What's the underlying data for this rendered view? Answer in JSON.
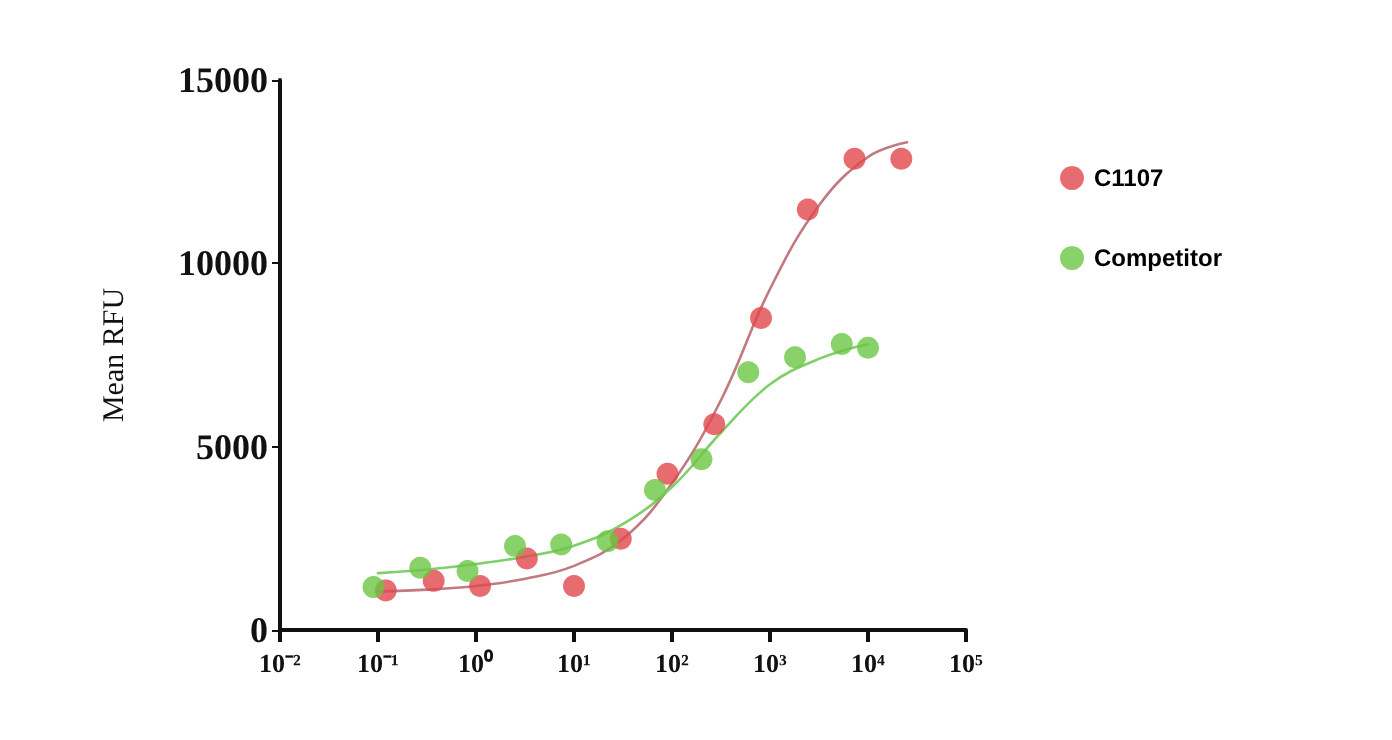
{
  "chart_data": {
    "type": "scatter",
    "ylabel": "Mean RFU",
    "log": "x",
    "xlim": [
      0.01,
      100000
    ],
    "xticks": [
      {
        "value": 0.01,
        "label": "10⁻²"
      },
      {
        "value": 0.1,
        "label": "10⁻¹"
      },
      {
        "value": 1,
        "label": "10⁰"
      },
      {
        "value": 10,
        "label": "10¹"
      },
      {
        "value": 100,
        "label": "10²"
      },
      {
        "value": 1000,
        "label": "10³"
      },
      {
        "value": 10000,
        "label": "10⁴"
      },
      {
        "value": 100000,
        "label": "10⁵"
      }
    ],
    "ylim": [
      0,
      15000
    ],
    "yticks": [
      0,
      5000,
      10000,
      15000
    ],
    "grid": false,
    "legend": "top right",
    "marker": "circle",
    "series": [
      {
        "name": "C1107",
        "color": "#e0474c",
        "x": [
          0.12,
          0.37,
          1.1,
          3.3,
          10,
          30,
          90,
          270,
          810,
          2430,
          7290,
          21870
        ],
        "values": [
          1080,
          1340,
          1200,
          1950,
          1200,
          2490,
          4260,
          5610,
          8510,
          11470,
          12850,
          12850
        ]
      },
      {
        "name": "Competitor",
        "color": "#6cc644",
        "x": [
          0.09,
          0.27,
          0.82,
          2.5,
          7.4,
          22,
          67,
          200,
          600,
          1800,
          5400,
          10000
        ],
        "values": [
          1170,
          1700,
          1610,
          2290,
          2330,
          2420,
          3820,
          4660,
          7030,
          7440,
          7800,
          7700
        ]
      },
      {
        "type": "line",
        "marker": "none",
        "color": "#c07a80",
        "x": [
          0.1,
          0.32,
          1,
          3.2,
          10,
          32,
          100,
          320,
          1000,
          3200,
          10000,
          25000
        ],
        "values": [
          1050,
          1100,
          1200,
          1400,
          1750,
          2500,
          4000,
          6300,
          9300,
          11600,
          12900,
          13300
        ]
      },
      {
        "type": "line",
        "marker": "none",
        "color": "#7fcf6a",
        "x": [
          0.1,
          0.32,
          1,
          3.2,
          10,
          32,
          100,
          320,
          1000,
          3200,
          10000
        ],
        "values": [
          1550,
          1650,
          1800,
          2000,
          2300,
          2900,
          3900,
          5400,
          6700,
          7400,
          7800
        ]
      }
    ]
  }
}
